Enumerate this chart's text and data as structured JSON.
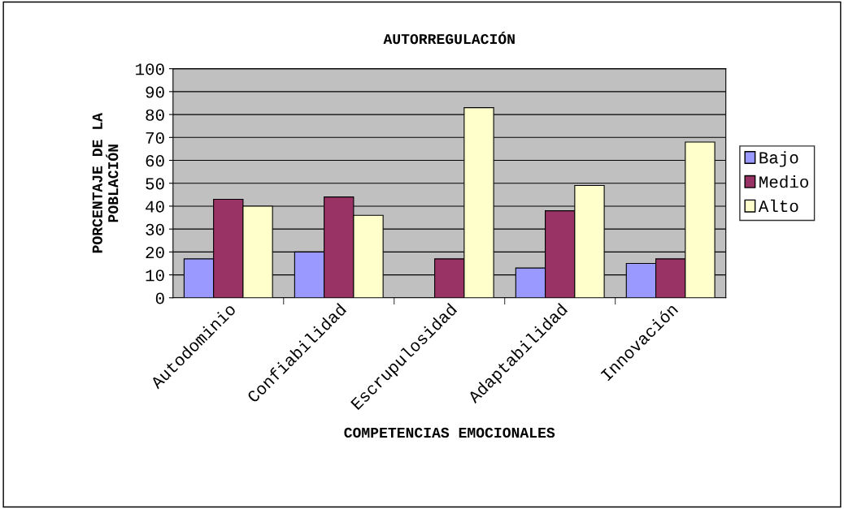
{
  "chart_data": {
    "type": "bar",
    "title": "AUTORREGULACIÓN",
    "xlabel": "COMPETENCIAS EMOCIONALES",
    "ylabel": "PORCENTAJE DE LA\nPOBLACIÓN",
    "categories": [
      "Autodominio",
      "Confiabilidad",
      "Escrupulosidad",
      "Adaptabilidad",
      "Innovación"
    ],
    "series": [
      {
        "name": "Bajo",
        "color": "#9999ff",
        "values": [
          17,
          20,
          null,
          13,
          15
        ]
      },
      {
        "name": "Medio",
        "color": "#993366",
        "values": [
          43,
          44,
          17,
          38,
          17
        ]
      },
      {
        "name": "Alto",
        "color": "#ffffcc",
        "values": [
          40,
          36,
          83,
          49,
          68
        ]
      }
    ],
    "ylim": [
      0,
      100
    ],
    "yticks": [
      0,
      10,
      20,
      30,
      40,
      50,
      60,
      70,
      80,
      90,
      100
    ],
    "grid": "y",
    "legend": "right"
  }
}
